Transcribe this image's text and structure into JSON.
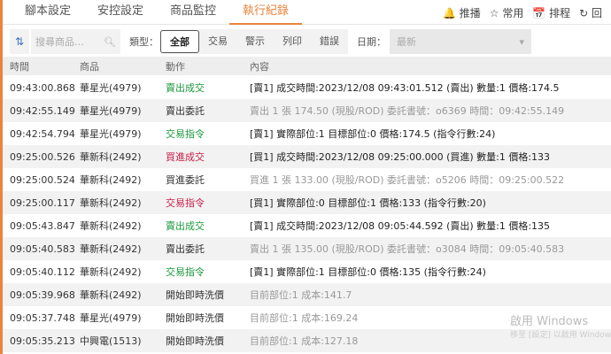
{
  "tabs": [
    "腳本設定",
    "安控設定",
    "商品監控",
    "執行紀錄"
  ],
  "active_tab": "執行紀錄",
  "tools": [
    "🔔 推播",
    "☆ 常用",
    "📅 排程",
    "↻ 回"
  ],
  "toolbar": {
    "search_placeholder": "搜尋商品...",
    "type_label": "類型：",
    "types": [
      "全部",
      "交易",
      "警示",
      "列印",
      "錯誤"
    ],
    "date_label": "日期：",
    "date_value": "最新"
  },
  "columns": [
    "時間",
    "商品",
    "動作",
    "內容"
  ],
  "colors": {
    "accent": "#e8843c",
    "green": "#1a9a3c",
    "red": "#c8204a"
  },
  "rows": [
    {
      "time": "09:43:00.868",
      "item": "華星光(4979)",
      "action": "賣出成交",
      "action_color": "#1a9a3c",
      "content": "[賣1] 成交時間:2023/12/08 09:43:01.512 (賣出) 數量:1 價格:174.5",
      "muted": false
    },
    {
      "time": "09:42:55.149",
      "item": "華星光(4979)",
      "action": "賣出委託",
      "action_color": "#333",
      "content": "賣出 1 張 174.50 (現股/ROD) 委託書號：o6369 時間：09:42:55.149",
      "muted": true
    },
    {
      "time": "09:42:54.794",
      "item": "華星光(4979)",
      "action": "交易指令",
      "action_color": "#1a9a3c",
      "content": "[賣1] 實際部位:1 目標部位:0 價格:174.5  (指令行數:24)",
      "muted": false
    },
    {
      "time": "09:25:00.526",
      "item": "華新科(2492)",
      "action": "買進成交",
      "action_color": "#c8204a",
      "content": "[買1] 成交時間:2023/12/08 09:25:00.000 (買進) 數量:1 價格:133",
      "muted": false
    },
    {
      "time": "09:25:00.524",
      "item": "華新科(2492)",
      "action": "買進委託",
      "action_color": "#333",
      "content": "買進 1 張 133.00 (現股/ROD) 委託書號：o5206 時間：09:25:00.522",
      "muted": true
    },
    {
      "time": "09:25:00.117",
      "item": "華新科(2492)",
      "action": "交易指令",
      "action_color": "#c8204a",
      "content": "[買1] 實際部位:0 目標部位:1 價格:133  (指令行數:20)",
      "muted": false
    },
    {
      "time": "09:05:43.847",
      "item": "華新科(2492)",
      "action": "賣出成交",
      "action_color": "#1a9a3c",
      "content": "[賣1] 成交時間:2023/12/08 09:05:44.592 (賣出) 數量:1 價格:135",
      "muted": false
    },
    {
      "time": "09:05:40.583",
      "item": "華新科(2492)",
      "action": "賣出委託",
      "action_color": "#333",
      "content": "賣出 1 張 135.00 (現股/ROD) 委託書號：o3084 時間：09:05:40.583",
      "muted": true
    },
    {
      "time": "09:05:40.112",
      "item": "華新科(2492)",
      "action": "交易指令",
      "action_color": "#1a9a3c",
      "content": "[賣1] 實際部位:1 目標部位:0 價格:135  (指令行數:24)",
      "muted": false
    },
    {
      "time": "09:05:39.968",
      "item": "華新科(2492)",
      "action": "開始即時洗價",
      "action_color": "#333",
      "content": "目前部位:1 成本:141.7",
      "muted": true
    },
    {
      "time": "09:05:37.748",
      "item": "華星光(4979)",
      "action": "開始即時洗價",
      "action_color": "#333",
      "content": "目前部位:1 成本:169.24",
      "muted": true
    },
    {
      "time": "09:05:35.213",
      "item": "中興電(1513)",
      "action": "開始即時洗價",
      "action_color": "#333",
      "content": "目前部位:1 成本:127.18",
      "muted": true
    }
  ],
  "watermark": {
    "line1": "啟用 Windows",
    "line2": "移至 [設定] 以啟用 Windows"
  }
}
